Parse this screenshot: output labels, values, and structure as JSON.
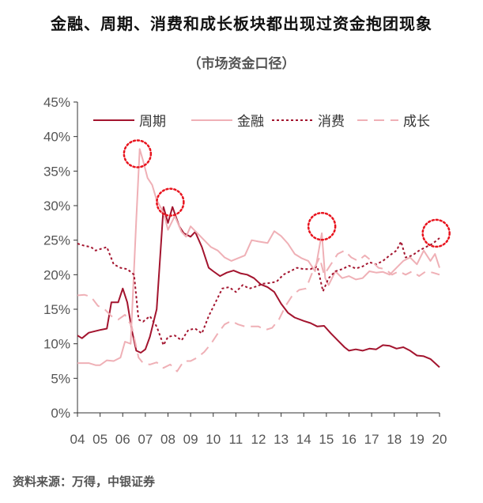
{
  "header": {
    "title": "金融、周期、消费和成长板块都出现过资金抱团现象",
    "subtitle": "（市场资金口径）"
  },
  "footer": {
    "source": "资料来源：万得，中银证券"
  },
  "colors": {
    "zhouqi": "#a3142e",
    "jinrong": "#efb0b6",
    "xiaofei": "#a3142e",
    "chengzhang": "#efb0b6",
    "highlight": "#e8141e",
    "axis": "#333333"
  },
  "chart_data": {
    "type": "line",
    "ylim": [
      0,
      45
    ],
    "xlim": [
      2004,
      2020
    ],
    "y_ticks": [
      0,
      5,
      10,
      15,
      20,
      25,
      30,
      35,
      40,
      45
    ],
    "y_tick_labels": [
      "0%",
      "5%",
      "10%",
      "15%",
      "20%",
      "25%",
      "30%",
      "35%",
      "40%",
      "45%"
    ],
    "x_ticks": [
      2004,
      2005,
      2006,
      2007,
      2008,
      2009,
      2010,
      2011,
      2012,
      2013,
      2014,
      2015,
      2016,
      2017,
      2018,
      2019,
      2020
    ],
    "x_tick_labels": [
      "04",
      "05",
      "06",
      "07",
      "08",
      "09",
      "10",
      "11",
      "12",
      "13",
      "14",
      "15",
      "16",
      "17",
      "18",
      "19",
      "20"
    ],
    "legend_position": "top",
    "grid": false,
    "series": [
      {
        "name": "周期",
        "style": "solid",
        "color_key": "zhouqi",
        "points": [
          [
            2004.0,
            11.2
          ],
          [
            2004.2,
            10.8
          ],
          [
            2004.5,
            11.6
          ],
          [
            2005.0,
            12.0
          ],
          [
            2005.3,
            12.2
          ],
          [
            2005.5,
            16.0
          ],
          [
            2005.8,
            16.0
          ],
          [
            2006.0,
            18.0
          ],
          [
            2006.2,
            16.0
          ],
          [
            2006.4,
            12.0
          ],
          [
            2006.6,
            9.0
          ],
          [
            2006.8,
            8.7
          ],
          [
            2007.0,
            9.2
          ],
          [
            2007.2,
            11.0
          ],
          [
            2007.5,
            15.0
          ],
          [
            2007.8,
            29.8
          ],
          [
            2008.0,
            27.5
          ],
          [
            2008.2,
            29.8
          ],
          [
            2008.5,
            27.0
          ],
          [
            2008.7,
            26.0
          ],
          [
            2009.0,
            25.5
          ],
          [
            2009.2,
            26.2
          ],
          [
            2009.5,
            24.0
          ],
          [
            2009.8,
            21.0
          ],
          [
            2010.0,
            20.5
          ],
          [
            2010.3,
            19.8
          ],
          [
            2010.6,
            20.3
          ],
          [
            2010.9,
            20.6
          ],
          [
            2011.2,
            20.2
          ],
          [
            2011.5,
            20.0
          ],
          [
            2011.8,
            19.5
          ],
          [
            2012.1,
            18.6
          ],
          [
            2012.4,
            18.2
          ],
          [
            2012.7,
            17.5
          ],
          [
            2013.0,
            15.8
          ],
          [
            2013.3,
            14.5
          ],
          [
            2013.6,
            13.8
          ],
          [
            2014.0,
            13.3
          ],
          [
            2014.3,
            13.0
          ],
          [
            2014.6,
            12.5
          ],
          [
            2014.9,
            12.6
          ],
          [
            2015.2,
            11.5
          ],
          [
            2015.5,
            10.5
          ],
          [
            2015.8,
            9.5
          ],
          [
            2016.0,
            9.0
          ],
          [
            2016.3,
            9.2
          ],
          [
            2016.6,
            9.0
          ],
          [
            2016.9,
            9.3
          ],
          [
            2017.2,
            9.2
          ],
          [
            2017.5,
            9.8
          ],
          [
            2017.8,
            9.7
          ],
          [
            2018.1,
            9.3
          ],
          [
            2018.4,
            9.5
          ],
          [
            2018.7,
            9.0
          ],
          [
            2019.0,
            8.3
          ],
          [
            2019.3,
            8.2
          ],
          [
            2019.6,
            7.8
          ],
          [
            2019.8,
            7.2
          ],
          [
            2020.0,
            6.6
          ]
        ]
      },
      {
        "name": "金融",
        "style": "solid",
        "color_key": "jinrong",
        "points": [
          [
            2004.0,
            7.2
          ],
          [
            2004.5,
            7.2
          ],
          [
            2004.8,
            6.9
          ],
          [
            2005.0,
            6.9
          ],
          [
            2005.3,
            7.6
          ],
          [
            2005.6,
            7.5
          ],
          [
            2005.9,
            8.0
          ],
          [
            2006.1,
            10.3
          ],
          [
            2006.35,
            10.0
          ],
          [
            2006.6,
            28.0
          ],
          [
            2006.75,
            38.2
          ],
          [
            2006.9,
            36.5
          ],
          [
            2007.1,
            34.0
          ],
          [
            2007.3,
            33.0
          ],
          [
            2007.5,
            30.8
          ],
          [
            2007.8,
            29.0
          ],
          [
            2008.0,
            26.5
          ],
          [
            2008.3,
            28.5
          ],
          [
            2008.6,
            26.2
          ],
          [
            2008.8,
            25.5
          ],
          [
            2009.0,
            27.0
          ],
          [
            2009.3,
            26.0
          ],
          [
            2009.6,
            25.0
          ],
          [
            2009.9,
            24.0
          ],
          [
            2010.2,
            23.5
          ],
          [
            2010.5,
            22.5
          ],
          [
            2010.8,
            22.0
          ],
          [
            2011.1,
            22.4
          ],
          [
            2011.4,
            22.8
          ],
          [
            2011.7,
            25.0
          ],
          [
            2012.0,
            24.8
          ],
          [
            2012.4,
            24.6
          ],
          [
            2012.7,
            26.3
          ],
          [
            2013.0,
            25.6
          ],
          [
            2013.3,
            24.5
          ],
          [
            2013.6,
            23.0
          ],
          [
            2013.9,
            22.4
          ],
          [
            2014.2,
            22.0
          ],
          [
            2014.5,
            20.5
          ],
          [
            2014.8,
            26.0
          ],
          [
            2014.95,
            19.5
          ],
          [
            2015.1,
            18.5
          ],
          [
            2015.4,
            20.5
          ],
          [
            2015.7,
            19.5
          ],
          [
            2016.0,
            19.8
          ],
          [
            2016.3,
            19.3
          ],
          [
            2016.6,
            19.5
          ],
          [
            2016.9,
            20.5
          ],
          [
            2017.2,
            20.3
          ],
          [
            2017.5,
            20.4
          ],
          [
            2017.8,
            20.0
          ],
          [
            2018.1,
            21.0
          ],
          [
            2018.4,
            22.0
          ],
          [
            2018.7,
            22.5
          ],
          [
            2019.0,
            21.5
          ],
          [
            2019.3,
            23.5
          ],
          [
            2019.6,
            22.0
          ],
          [
            2019.8,
            23.0
          ],
          [
            2020.0,
            21.0
          ]
        ]
      },
      {
        "name": "消费",
        "style": "dotted",
        "color_key": "xiaofei",
        "points": [
          [
            2004.0,
            24.5
          ],
          [
            2004.3,
            24.2
          ],
          [
            2004.6,
            24.0
          ],
          [
            2004.8,
            23.5
          ],
          [
            2005.1,
            23.8
          ],
          [
            2005.3,
            24.0
          ],
          [
            2005.6,
            21.5
          ],
          [
            2005.9,
            21.0
          ],
          [
            2006.2,
            20.8
          ],
          [
            2006.5,
            20.0
          ],
          [
            2006.7,
            13.5
          ],
          [
            2006.9,
            13.2
          ],
          [
            2007.2,
            14.0
          ],
          [
            2007.5,
            12.5
          ],
          [
            2007.8,
            9.8
          ],
          [
            2008.0,
            11.0
          ],
          [
            2008.3,
            11.2
          ],
          [
            2008.6,
            10.5
          ],
          [
            2008.9,
            12.0
          ],
          [
            2009.2,
            12.2
          ],
          [
            2009.5,
            11.5
          ],
          [
            2009.8,
            14.0
          ],
          [
            2010.1,
            16.0
          ],
          [
            2010.4,
            18.0
          ],
          [
            2010.7,
            18.2
          ],
          [
            2011.0,
            17.5
          ],
          [
            2011.3,
            18.5
          ],
          [
            2011.6,
            18.0
          ],
          [
            2011.9,
            18.3
          ],
          [
            2012.2,
            18.7
          ],
          [
            2012.5,
            18.8
          ],
          [
            2012.8,
            19.0
          ],
          [
            2013.1,
            20.0
          ],
          [
            2013.4,
            20.5
          ],
          [
            2013.7,
            21.0
          ],
          [
            2014.0,
            20.8
          ],
          [
            2014.3,
            20.8
          ],
          [
            2014.6,
            21.2
          ],
          [
            2014.85,
            17.6
          ],
          [
            2015.1,
            19.5
          ],
          [
            2015.4,
            20.5
          ],
          [
            2015.7,
            20.8
          ],
          [
            2016.0,
            21.3
          ],
          [
            2016.3,
            20.9
          ],
          [
            2016.6,
            21.2
          ],
          [
            2016.9,
            21.8
          ],
          [
            2017.2,
            21.5
          ],
          [
            2017.5,
            22.0
          ],
          [
            2017.8,
            22.8
          ],
          [
            2018.1,
            23.5
          ],
          [
            2018.3,
            24.8
          ],
          [
            2018.5,
            22.5
          ],
          [
            2018.8,
            22.8
          ],
          [
            2019.1,
            23.5
          ],
          [
            2019.4,
            24.0
          ],
          [
            2019.7,
            24.5
          ],
          [
            2020.0,
            25.3
          ]
        ]
      },
      {
        "name": "成长",
        "style": "dashed",
        "color_key": "chengzhang",
        "points": [
          [
            2004.0,
            17.0
          ],
          [
            2004.3,
            17.1
          ],
          [
            2004.6,
            16.8
          ],
          [
            2004.9,
            15.5
          ],
          [
            2005.2,
            15.0
          ],
          [
            2005.5,
            14.0
          ],
          [
            2005.8,
            13.5
          ],
          [
            2006.1,
            14.2
          ],
          [
            2006.4,
            12.5
          ],
          [
            2006.7,
            8.0
          ],
          [
            2006.9,
            7.2
          ],
          [
            2007.2,
            7.0
          ],
          [
            2007.5,
            7.3
          ],
          [
            2007.8,
            6.5
          ],
          [
            2008.1,
            7.0
          ],
          [
            2008.4,
            6.0
          ],
          [
            2008.7,
            7.5
          ],
          [
            2009.0,
            7.5
          ],
          [
            2009.3,
            8.0
          ],
          [
            2009.6,
            8.8
          ],
          [
            2009.9,
            10.0
          ],
          [
            2010.2,
            11.5
          ],
          [
            2010.5,
            12.8
          ],
          [
            2010.8,
            13.3
          ],
          [
            2011.1,
            12.8
          ],
          [
            2011.4,
            12.5
          ],
          [
            2011.7,
            12.5
          ],
          [
            2012.0,
            12.5
          ],
          [
            2012.3,
            12.0
          ],
          [
            2012.6,
            12.3
          ],
          [
            2012.9,
            13.5
          ],
          [
            2013.2,
            15.5
          ],
          [
            2013.5,
            17.0
          ],
          [
            2013.8,
            17.8
          ],
          [
            2014.1,
            18.0
          ],
          [
            2014.4,
            20.5
          ],
          [
            2014.7,
            22.5
          ],
          [
            2014.9,
            20.0
          ],
          [
            2015.2,
            21.5
          ],
          [
            2015.5,
            23.0
          ],
          [
            2015.8,
            23.5
          ],
          [
            2016.1,
            22.5
          ],
          [
            2016.4,
            22.0
          ],
          [
            2016.7,
            22.8
          ],
          [
            2017.0,
            22.0
          ],
          [
            2017.3,
            21.0
          ],
          [
            2017.6,
            20.8
          ],
          [
            2017.9,
            20.0
          ],
          [
            2018.2,
            20.5
          ],
          [
            2018.5,
            20.0
          ],
          [
            2018.8,
            20.5
          ],
          [
            2019.1,
            19.8
          ],
          [
            2019.4,
            20.5
          ],
          [
            2019.7,
            20.3
          ],
          [
            2020.0,
            20.0
          ]
        ]
      }
    ],
    "highlights": [
      {
        "x": 2006.65,
        "y": 37.5
      },
      {
        "x": 2008.1,
        "y": 30.5
      },
      {
        "x": 2014.8,
        "y": 27.0
      },
      {
        "x": 2019.85,
        "y": 26.0
      }
    ]
  }
}
